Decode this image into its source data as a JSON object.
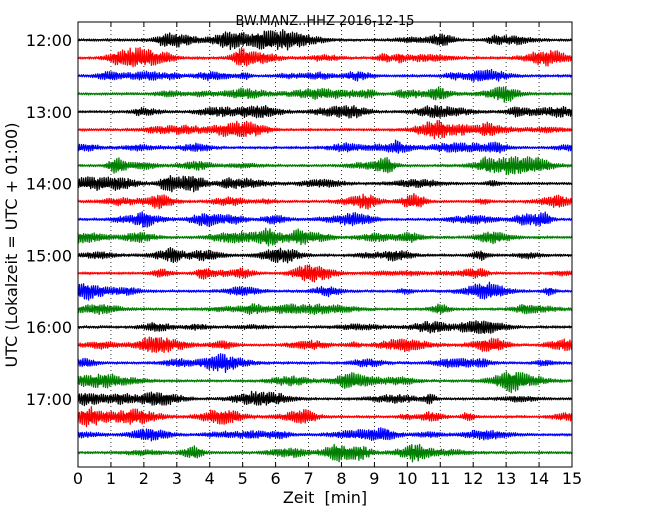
{
  "chart_data": {
    "type": "line",
    "title": "BW.MANZ..HHZ 2016-12-15",
    "xlabel": "Zeit  [min]",
    "ylabel": "UTC (Lokalzeit = UTC + 01:00)",
    "xlim": [
      0,
      15
    ],
    "x_ticks": [
      "0",
      "1",
      "2",
      "3",
      "4",
      "5",
      "6",
      "7",
      "8",
      "9",
      "10",
      "11",
      "12",
      "13",
      "14",
      "15"
    ],
    "y_tick_labels": [
      "12:00",
      "13:00",
      "14:00",
      "15:00",
      "16:00",
      "17:00"
    ],
    "grid": "vertical dotted lines at each minute",
    "trace_interval_minutes": 15,
    "trace_start_times": [
      "12:00",
      "12:15",
      "12:30",
      "12:45",
      "13:00",
      "13:15",
      "13:30",
      "13:45",
      "14:00",
      "14:15",
      "14:30",
      "14:45",
      "15:00",
      "15:15",
      "15:30",
      "15:45",
      "16:00",
      "16:15",
      "16:30",
      "16:45",
      "17:00",
      "17:15",
      "17:30",
      "17:45"
    ],
    "trace_color_cycle": [
      "#000000",
      "#ff0000",
      "#0000ff",
      "#007f00"
    ]
  }
}
